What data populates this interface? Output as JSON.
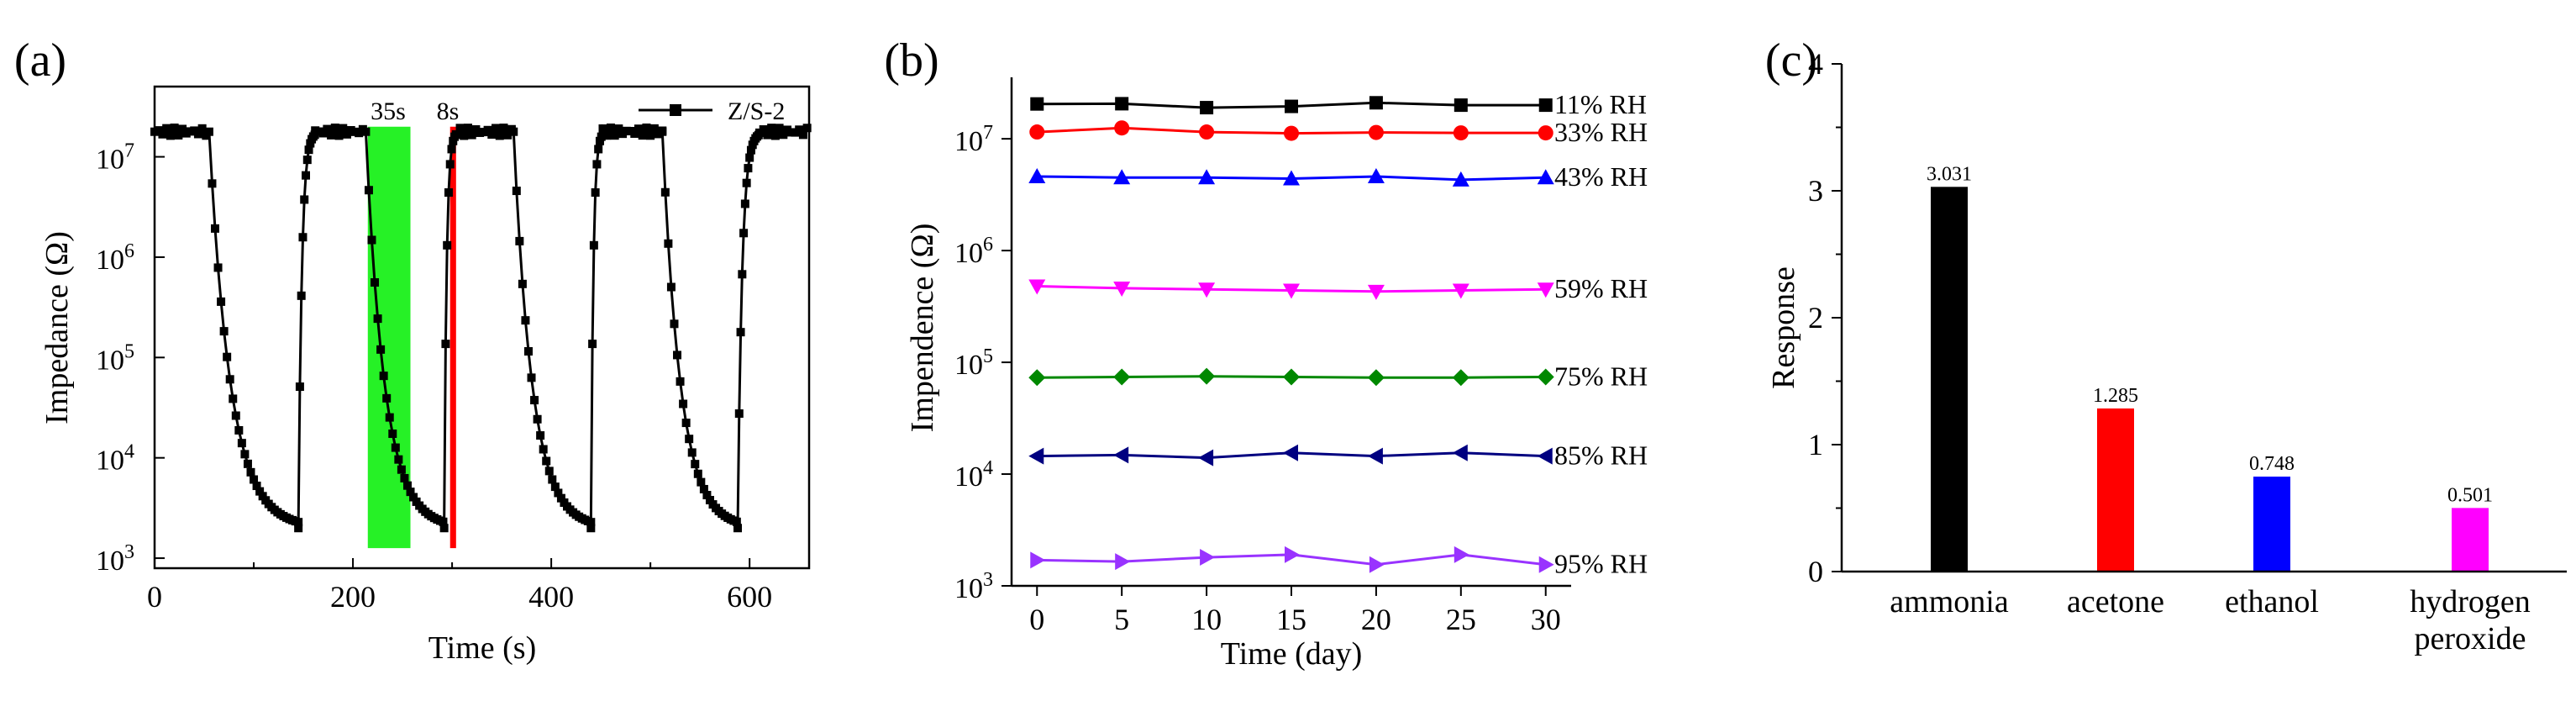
{
  "chart_data": [
    {
      "panel": "(a)",
      "type": "line",
      "xlabel": "Time (s)",
      "ylabel": "Impedance (Ω)",
      "yscale": "log",
      "xlim": [
        0,
        660
      ],
      "ylim_log10": [
        2.9,
        7.7
      ],
      "xticks": [
        "0",
        "200",
        "400",
        "600"
      ],
      "xtick_values": [
        0,
        200,
        400,
        600
      ],
      "yticks": [
        "10",
        "10",
        "10",
        "10",
        "10"
      ],
      "ytick_exponents": [
        "3",
        "4",
        "5",
        "6",
        "7"
      ],
      "ytick_values_log10": [
        3,
        4,
        5,
        6,
        7
      ],
      "legend": "Z/S-2",
      "annotations": [
        {
          "text": "35s",
          "x_start": 215,
          "x_end": 258,
          "color": "#00ee00"
        },
        {
          "text": "8s",
          "x_start": 298,
          "x_end": 304,
          "color": "#ff0000"
        }
      ],
      "cycles": [
        {
          "adsorb_start": 55,
          "desorb_start": 145,
          "next_desorb_end": 162
        },
        {
          "adsorb_start": 213,
          "desorb_start": 292,
          "next_desorb_end": 304
        },
        {
          "adsorb_start": 362,
          "desorb_start": 440,
          "next_desorb_end": 452
        },
        {
          "adsorb_start": 512,
          "desorb_start": 588,
          "next_desorb_end": 610
        }
      ],
      "high_level_log10": 7.25,
      "low_level_log10": 3.3,
      "marker": "square",
      "color": "#000000"
    },
    {
      "panel": "(b)",
      "type": "line",
      "xlabel": "Time (day)",
      "ylabel": "Impendence (Ω)",
      "yscale": "log",
      "xlim": [
        -1.5,
        31.5
      ],
      "ylim_log10": [
        3,
        7.55
      ],
      "x": [
        0,
        5,
        10,
        15,
        20,
        25,
        30
      ],
      "xticks": [
        "0",
        "5",
        "10",
        "15",
        "20",
        "25",
        "30"
      ],
      "yticks": [
        "10",
        "10",
        "10",
        "10",
        "10"
      ],
      "ytick_exponents": [
        "3",
        "4",
        "5",
        "6",
        "7"
      ],
      "ytick_values_log10": [
        3,
        4,
        5,
        6,
        7
      ],
      "series": [
        {
          "name": "11% RH",
          "color": "#000000",
          "marker": "square",
          "values": [
            20500000,
            20600000,
            19000000,
            19500000,
            21000000,
            20000000,
            20000000
          ]
        },
        {
          "name": "33% RH",
          "color": "#ff0000",
          "marker": "circle",
          "values": [
            11500000,
            12500000,
            11500000,
            11200000,
            11400000,
            11300000,
            11300000
          ]
        },
        {
          "name": "43% RH",
          "color": "#0000ff",
          "marker": "triangle-up",
          "values": [
            4600000,
            4500000,
            4500000,
            4400000,
            4600000,
            4300000,
            4500000
          ]
        },
        {
          "name": "59% RH",
          "color": "#ff00ff",
          "marker": "triangle-down",
          "values": [
            480000,
            460000,
            450000,
            440000,
            430000,
            440000,
            450000
          ]
        },
        {
          "name": "75% RH",
          "color": "#008800",
          "marker": "diamond",
          "values": [
            73000,
            74000,
            75000,
            74000,
            73000,
            73000,
            74000
          ]
        },
        {
          "name": "85% RH",
          "color": "#000080",
          "marker": "triangle-left",
          "values": [
            14500,
            14800,
            14000,
            15500,
            14500,
            15500,
            14500
          ]
        },
        {
          "name": "95% RH",
          "color": "#9933ff",
          "marker": "triangle-right",
          "values": [
            1700,
            1650,
            1800,
            1900,
            1550,
            1900,
            1550
          ]
        }
      ]
    },
    {
      "panel": "(c)",
      "type": "bar",
      "ylabel": "Response",
      "xlabel": "",
      "ylim": [
        0,
        4
      ],
      "yticks": [
        "0",
        "1",
        "2",
        "3",
        "4"
      ],
      "categories": [
        "ammonia",
        "acetone",
        "ethanol",
        "hydrogen peroxide"
      ],
      "category_lines": [
        [
          "ammonia"
        ],
        [
          "acetone"
        ],
        [
          "ethanol"
        ],
        [
          "hydrogen",
          "peroxide"
        ]
      ],
      "values": [
        3.031,
        1.285,
        0.748,
        0.501
      ],
      "labels": [
        "3.031",
        "1.285",
        "0.748",
        "0.501"
      ],
      "colors": [
        "#000000",
        "#ff0000",
        "#0000ff",
        "#ff00ff"
      ]
    }
  ]
}
